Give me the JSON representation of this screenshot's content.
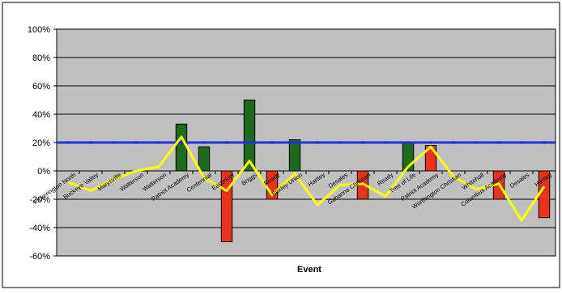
{
  "chart_data": {
    "type": "bar",
    "xlabel": "Event",
    "ylabel": "",
    "ylim": [
      -60,
      100
    ],
    "yticks": [
      -60,
      -40,
      -20,
      0,
      20,
      40,
      60,
      80,
      100
    ],
    "ytick_suffix": "%",
    "grid": true,
    "categories": [
      "Pickerington North",
      "Buckeye Valley",
      "Marysville",
      "Watterson",
      "Watterson",
      "Patriot Academy",
      "Centennial",
      "Eastmoor",
      "Briggs",
      "Ready",
      "Bexley Union",
      "Hartley",
      "Desales",
      "Gahanna Christian",
      "Ready",
      "Tree of Life",
      "Patriot Academy",
      "Worthington Christian",
      "Whitehall",
      "Columbus Academy",
      "Desales",
      "Hartley"
    ],
    "bars": [
      0,
      0,
      0,
      0,
      0,
      33,
      17,
      -50,
      50,
      -20,
      22,
      0,
      0,
      -20,
      0,
      20,
      18,
      0,
      0,
      -20,
      0,
      -33
    ],
    "bar_colors": {
      "positive": "#1e6b1e",
      "negative": "#e8321e",
      "positive_highlight": "#e8321e"
    },
    "bar_color_overrides": {
      "16": "#e8321e"
    },
    "trend_line": [
      -8,
      -14,
      -6,
      0,
      3,
      24,
      -5,
      -14,
      7,
      -17,
      -2,
      -24,
      -10,
      -9,
      -18,
      3,
      17,
      -4,
      -13,
      -9,
      -35,
      -11
    ],
    "target_line": 20,
    "colors": {
      "plot_bg": "#c0c0c0",
      "grid": "#000000",
      "target": "#2233dd",
      "trend": "#ffff00",
      "frame": "#000000"
    }
  }
}
